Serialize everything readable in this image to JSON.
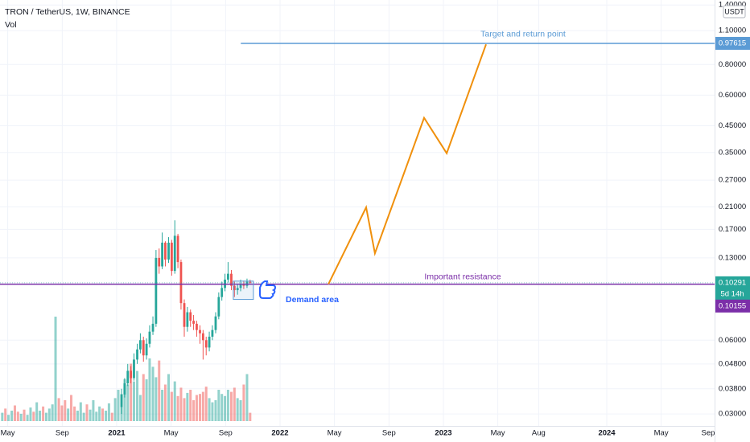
{
  "header": {
    "title": "TRON / TetherUS, 1W, BINANCE",
    "indicator": "Vol",
    "currency": "USDT"
  },
  "chart_data": {
    "type": "candlestick",
    "x": [
      2021.03,
      2021.049,
      2021.068,
      2021.087,
      2021.106,
      2021.126,
      2021.145,
      2021.164,
      2021.183,
      2021.202,
      2021.222,
      2021.241,
      2021.26,
      2021.279,
      2021.298,
      2021.318,
      2021.337,
      2021.356,
      2021.375,
      2021.394,
      2021.414,
      2021.433,
      2021.452,
      2021.471,
      2021.49,
      2021.51,
      2021.529,
      2021.548,
      2021.567,
      2021.586,
      2021.606,
      2021.625,
      2021.644,
      2021.663,
      2021.682,
      2021.702,
      2021.721,
      2021.74,
      2021.759,
      2021.778,
      2021.798,
      2021.817
    ],
    "open": [
      0.032,
      0.036,
      0.04,
      0.045,
      0.042,
      0.05,
      0.055,
      0.06,
      0.052,
      0.058,
      0.065,
      0.07,
      0.13,
      0.12,
      0.15,
      0.128,
      0.15,
      0.115,
      0.16,
      0.125,
      0.085,
      0.068,
      0.078,
      0.072,
      0.07,
      0.066,
      0.064,
      0.06,
      0.056,
      0.062,
      0.066,
      0.075,
      0.09,
      0.098,
      0.106,
      0.112,
      0.1,
      0.096,
      0.098,
      0.102,
      0.1,
      0.104
    ],
    "high": [
      0.038,
      0.042,
      0.048,
      0.047,
      0.053,
      0.058,
      0.064,
      0.062,
      0.061,
      0.069,
      0.075,
      0.14,
      0.142,
      0.165,
      0.152,
      0.158,
      0.154,
      0.185,
      0.163,
      0.128,
      0.088,
      0.082,
      0.08,
      0.076,
      0.072,
      0.069,
      0.066,
      0.062,
      0.065,
      0.069,
      0.078,
      0.094,
      0.104,
      0.112,
      0.125,
      0.116,
      0.104,
      0.102,
      0.106,
      0.105,
      0.107,
      0.106
    ],
    "low": [
      0.03,
      0.035,
      0.039,
      0.04,
      0.041,
      0.048,
      0.053,
      0.049,
      0.05,
      0.056,
      0.063,
      0.068,
      0.112,
      0.117,
      0.12,
      0.124,
      0.11,
      0.112,
      0.118,
      0.08,
      0.062,
      0.065,
      0.068,
      0.066,
      0.062,
      0.058,
      0.05,
      0.052,
      0.054,
      0.06,
      0.064,
      0.073,
      0.087,
      0.095,
      0.103,
      0.096,
      0.09,
      0.092,
      0.095,
      0.097,
      0.098,
      0.101
    ],
    "close": [
      0.036,
      0.04,
      0.045,
      0.042,
      0.05,
      0.055,
      0.06,
      0.052,
      0.058,
      0.065,
      0.07,
      0.13,
      0.12,
      0.15,
      0.128,
      0.15,
      0.115,
      0.16,
      0.125,
      0.085,
      0.068,
      0.078,
      0.072,
      0.07,
      0.066,
      0.064,
      0.06,
      0.056,
      0.062,
      0.066,
      0.075,
      0.09,
      0.098,
      0.106,
      0.112,
      0.1,
      0.096,
      0.098,
      0.102,
      0.1,
      0.104,
      0.1029
    ],
    "up_color": "#26a69a",
    "down_color": "#ef5350",
    "volume": {
      "x": [
        2020.3,
        2020.319,
        2020.338,
        2020.358,
        2020.377,
        2020.396,
        2020.415,
        2020.434,
        2020.454,
        2020.473,
        2020.492,
        2020.511,
        2020.53,
        2020.55,
        2020.569,
        2020.588,
        2020.607,
        2020.626,
        2020.646,
        2020.665,
        2020.684,
        2020.703,
        2020.722,
        2020.742,
        2020.761,
        2020.78,
        2020.799,
        2020.818,
        2020.838,
        2020.857,
        2020.876,
        2020.895,
        2020.914,
        2020.934,
        2020.953,
        2020.972,
        2020.991,
        2021.01,
        2021.03,
        2021.049,
        2021.068,
        2021.087,
        2021.106,
        2021.126,
        2021.145,
        2021.164,
        2021.183,
        2021.202,
        2021.222,
        2021.241,
        2021.26,
        2021.279,
        2021.298,
        2021.318,
        2021.337,
        2021.356,
        2021.375,
        2021.394,
        2021.414,
        2021.433,
        2021.452,
        2021.471,
        2021.49,
        2021.51,
        2021.529,
        2021.548,
        2021.567,
        2021.586,
        2021.606,
        2021.625,
        2021.644,
        2021.663,
        2021.682,
        2021.702,
        2021.721,
        2021.74,
        2021.759,
        2021.778,
        2021.798,
        2021.817
      ],
      "values": [
        8,
        12,
        6,
        10,
        15,
        9,
        7,
        11,
        6,
        13,
        9,
        18,
        10,
        14,
        8,
        12,
        16,
        100,
        22,
        15,
        20,
        12,
        25,
        14,
        10,
        18,
        8,
        16,
        11,
        20,
        9,
        14,
        12,
        10,
        17,
        8,
        22,
        30,
        26,
        40,
        35,
        55,
        38,
        48,
        25,
        45,
        40,
        60,
        52,
        42,
        58,
        30,
        35,
        45,
        28,
        38,
        24,
        32,
        22,
        27,
        30,
        20,
        25,
        26,
        28,
        33,
        22,
        18,
        20,
        30,
        26,
        24,
        30,
        28,
        32,
        22,
        20,
        35,
        45,
        8
      ],
      "rising": [
        true,
        false,
        true,
        true,
        false,
        false,
        true,
        false,
        true,
        true,
        false,
        true,
        true,
        false,
        true,
        true,
        true,
        true,
        false,
        false,
        false,
        true,
        false,
        false,
        true,
        true,
        true,
        false,
        true,
        true,
        true,
        true,
        false,
        true,
        true,
        false,
        true,
        true,
        true,
        true,
        true,
        false,
        true,
        true,
        true,
        false,
        true,
        true,
        true,
        true,
        false,
        true,
        false,
        true,
        false,
        true,
        false,
        false,
        false,
        true,
        false,
        false,
        false,
        false,
        false,
        false,
        true,
        true,
        true,
        true,
        true,
        true,
        true,
        false,
        false,
        true,
        true,
        false,
        true,
        false
      ],
      "vlim": [
        0,
        100
      ]
    },
    "xlim": [
      2020.286,
      2024.66
    ],
    "xticks": [
      {
        "value": 2020.333,
        "label": "May"
      },
      {
        "value": 2020.667,
        "label": "Sep"
      },
      2021,
      {
        "value": 2021.333,
        "label": "May"
      },
      {
        "value": 2021.667,
        "label": "Sep"
      },
      2022,
      {
        "value": 2022.333,
        "label": "May"
      },
      {
        "value": 2022.667,
        "label": "Sep"
      },
      2023,
      {
        "value": 2023.333,
        "label": "May"
      },
      {
        "value": 2023.583,
        "label": "Aug"
      },
      2024,
      {
        "value": 2024.333,
        "label": "May"
      },
      {
        "value": 2024.667,
        "label": "Sep"
      }
    ],
    "ylim": [
      0.0268,
      1.467
    ],
    "log_y": true,
    "yticks": [
      {
        "value": 1.4,
        "label": "1.40000"
      },
      {
        "value": 1.1,
        "label": "1.10000"
      },
      {
        "value": 0.8,
        "label": "0.80000"
      },
      {
        "value": 0.6,
        "label": "0.60000"
      },
      {
        "value": 0.45,
        "label": "0.45000"
      },
      {
        "value": 0.35,
        "label": "0.35000"
      },
      {
        "value": 0.27,
        "label": "0.27000"
      },
      {
        "value": 0.21,
        "label": "0.21000"
      },
      {
        "value": 0.17,
        "label": "0.17000"
      },
      {
        "value": 0.13,
        "label": "0.13000"
      },
      {
        "value": 0.06,
        "label": "0.06000"
      },
      {
        "value": 0.048,
        "label": "0.04800"
      },
      {
        "value": 0.038,
        "label": "0.03800"
      },
      {
        "value": 0.03,
        "label": "0.03000"
      }
    ],
    "grid": true,
    "last_price": {
      "value": 0.10291,
      "countdown": "5d 14h",
      "color": "#26a69a"
    },
    "annotations": {
      "target": {
        "text": "Target and return point",
        "value": 0.97615,
        "x_start": 2021.76,
        "color": "#5b9bd5"
      },
      "resistance": {
        "text": "Important resistance",
        "value": 0.10155,
        "color": "#7b2fa8"
      },
      "projection": {
        "x": [
          2022.296,
          2022.527,
          2022.581,
          2022.882,
          2023.02,
          2023.261
        ],
        "y": [
          0.10155,
          0.209,
          0.1357,
          0.485,
          0.3475,
          0.967
        ],
        "color": "#f0900c"
      },
      "demand": {
        "text": "Demand area",
        "x": [
          2021.714,
          2021.837
        ],
        "y": [
          0.088,
          0.1045
        ],
        "color": "#2962ff"
      }
    }
  }
}
